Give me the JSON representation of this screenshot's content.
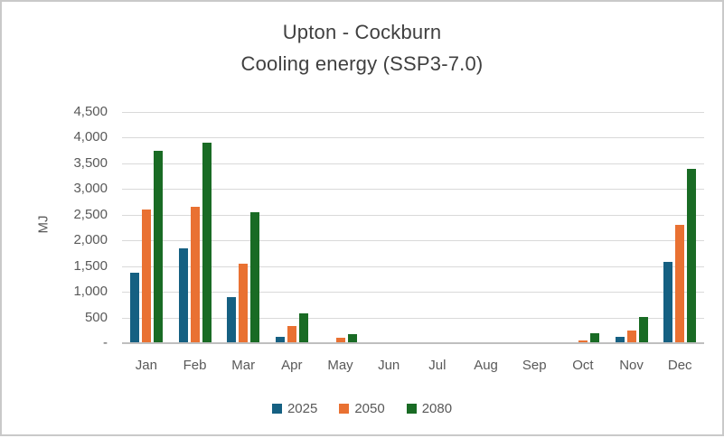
{
  "title": {
    "line1": "Upton - Cockburn",
    "line2": "Cooling energy (SSP3-7.0)"
  },
  "chart_data": {
    "type": "bar",
    "title": "Upton - Cockburn",
    "subtitle": "Cooling energy (SSP3-7.0)",
    "xlabel": "",
    "ylabel": "MJ",
    "ylim": [
      0,
      4500
    ],
    "ytick_interval": 500,
    "ytick_labels": [
      "4,500",
      "4,000",
      "3,500",
      "3,000",
      "2,500",
      "2,000",
      "1,500",
      "1,000",
      "500",
      "-"
    ],
    "grid": true,
    "legend_position": "bottom",
    "categories": [
      "Jan",
      "Feb",
      "Mar",
      "Apr",
      "May",
      "Jun",
      "Jul",
      "Aug",
      "Sep",
      "Oct",
      "Nov",
      "Dec"
    ],
    "series": [
      {
        "name": "2025",
        "color": "#156082",
        "values": [
          1375,
          1850,
          900,
          130,
          0,
          0,
          0,
          0,
          0,
          0,
          120,
          1580
        ]
      },
      {
        "name": "2050",
        "color": "#E97132",
        "values": [
          2600,
          2650,
          1550,
          340,
          110,
          0,
          0,
          0,
          0,
          50,
          250,
          2300
        ]
      },
      {
        "name": "2080",
        "color": "#196B24",
        "values": [
          3750,
          3900,
          2550,
          575,
          175,
          0,
          0,
          0,
          0,
          190,
          510,
          3390
        ]
      }
    ]
  },
  "colors": {
    "gridline": "#d9d9d9",
    "axis_line": "#bfbfbf",
    "title_text": "#404040",
    "axis_text": "#595959"
  }
}
